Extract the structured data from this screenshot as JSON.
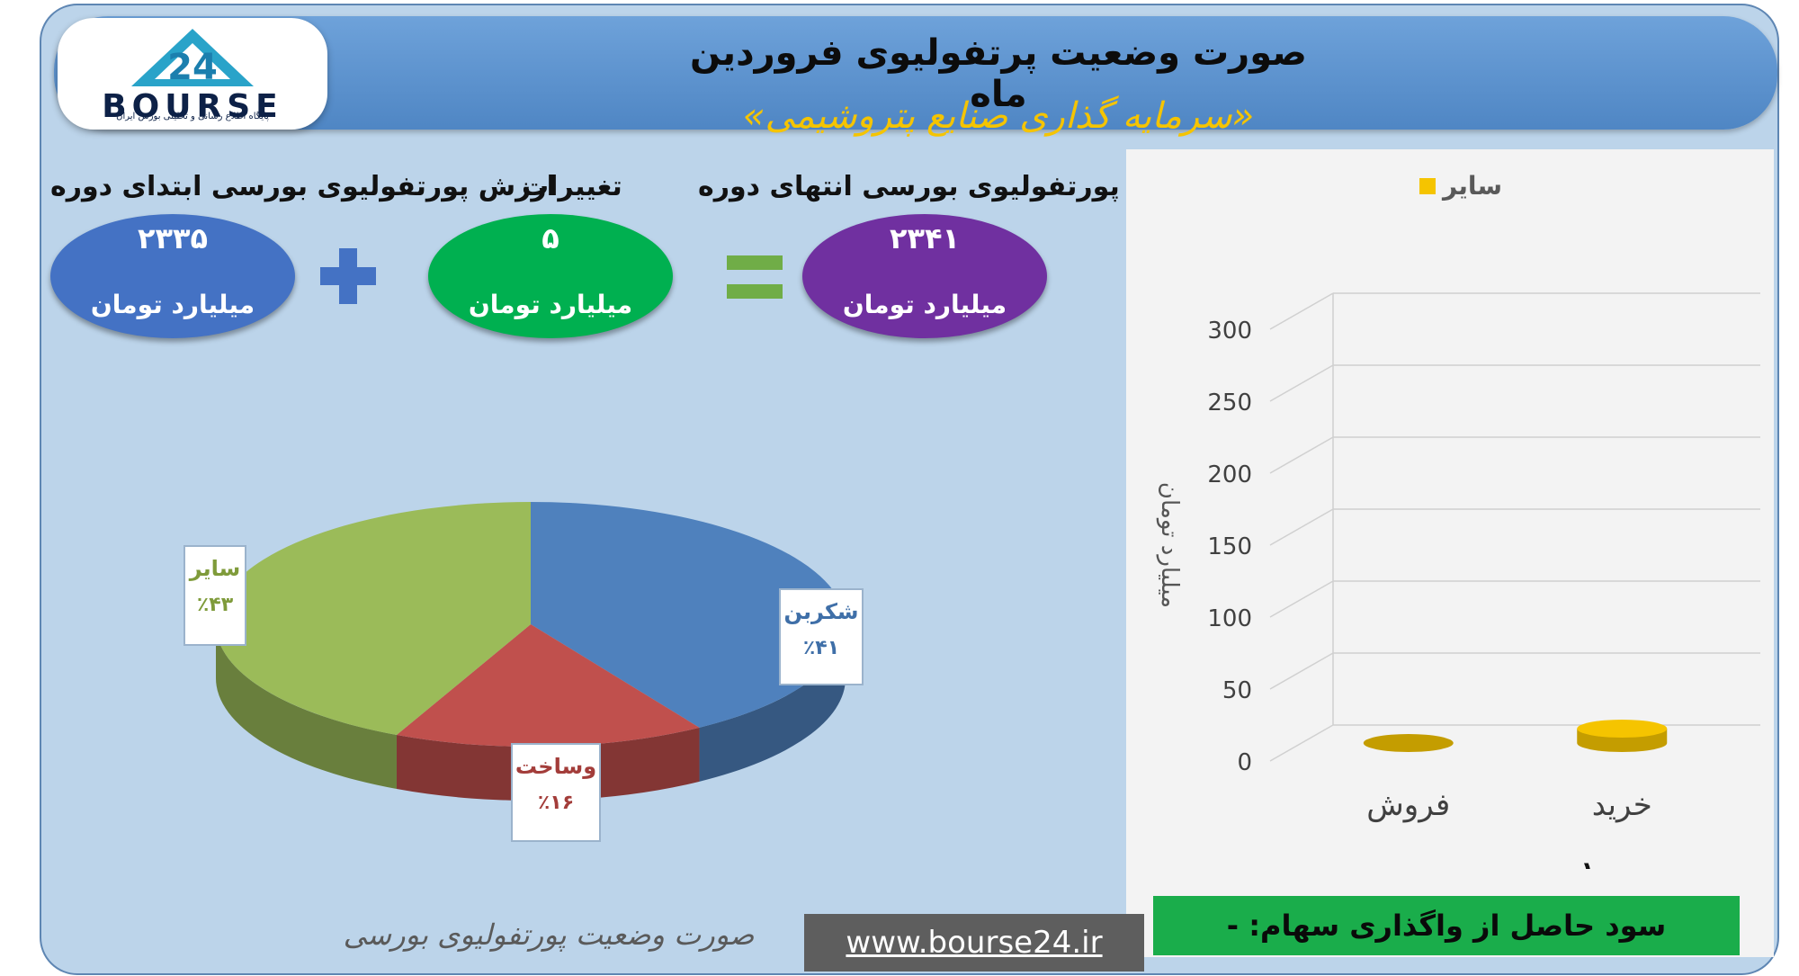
{
  "header": {
    "title": "صورت وضعیت پرتفولیوی فروردین ماه",
    "subtitle": "«سرمایه گذاری صنایع پتروشیمی»"
  },
  "logo": {
    "text": "BOURSE",
    "number": "24",
    "tagline": "پایگاه اطلاع رسانی و تحلیلی بورس ایران"
  },
  "summary": {
    "start": {
      "label": "ارزش پورتفولیوی بورسی ابتدای دوره",
      "value": "۲۳۳۵",
      "unit": "میلیارد تومان",
      "color": "#4472c4"
    },
    "change": {
      "label": "تغییرات",
      "value": "۵",
      "unit": "میلیارد تومان",
      "color": "#00b050"
    },
    "end": {
      "label": "ارزش پورتفولیوی بورسی انتهای دوره",
      "value": "۲۳۴۱",
      "unit": "میلیارد تومان",
      "color": "#7030a0"
    },
    "plus_color": "#4472c4",
    "equals_color": "#70ad47"
  },
  "footer": {
    "caption": "صورت وضعیت پورتفولیوی بورسی",
    "url": "www.bourse24.ir",
    "profit_label": "سود حاصل از واگذاری سهام: -"
  },
  "chart_data": [
    {
      "type": "pie",
      "title": "",
      "slices": [
        {
          "label": "شکربن",
          "percent_label": "٪۴۱",
          "value": 41,
          "color": "#4f81bd"
        },
        {
          "label": "وساخت",
          "percent_label": "٪۱۶",
          "value": 16,
          "color": "#c0504d"
        },
        {
          "label": "سایر",
          "percent_label": "٪۴۳",
          "value": 43,
          "color": "#9bbb59"
        }
      ]
    },
    {
      "type": "bar",
      "title": "",
      "categories": [
        "خرید",
        "فروش"
      ],
      "series": [
        {
          "name": "سایر",
          "values": [
            10,
            0
          ],
          "color": "#f5c400"
        }
      ],
      "value_labels": [
        "۱۰",
        "۰"
      ],
      "ylabel": "میلیارد تومان",
      "ylim": [
        0,
        300
      ],
      "yticks": [
        "0",
        "50",
        "100",
        "150",
        "200",
        "250",
        "300"
      ],
      "grid": true,
      "legend": "top"
    }
  ]
}
